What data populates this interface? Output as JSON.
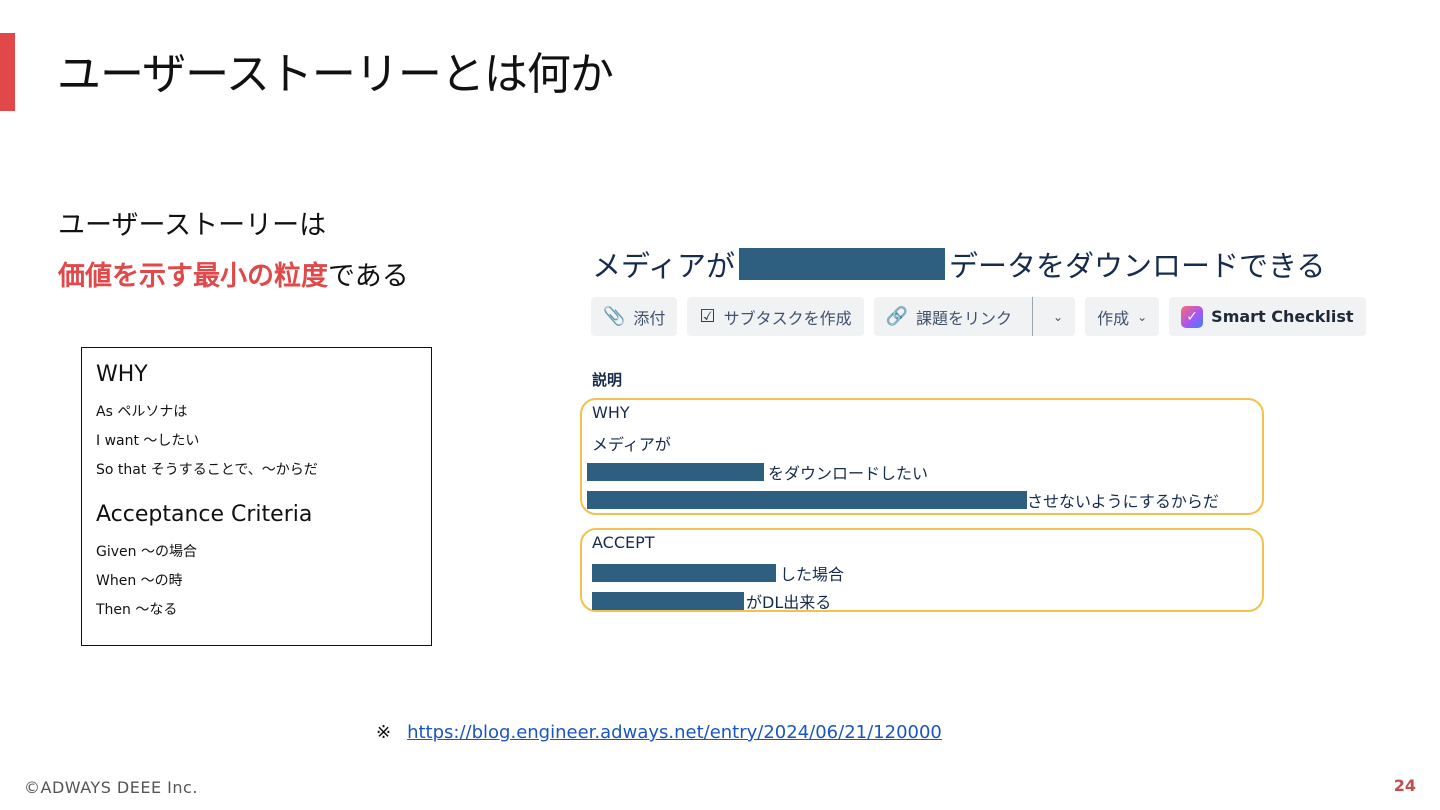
{
  "slide": {
    "title": "ユーザーストーリーとは何か",
    "lead_line1": "ユーザーストーリーは",
    "lead_line2_highlight": "価値を示す最小の粒度",
    "lead_line2_rest": "である"
  },
  "story_template": {
    "why_heading": "WHY",
    "why_lines": [
      "As ペルソナは",
      "I want 〜したい",
      "So that そうすることで、〜からだ"
    ],
    "acceptance_heading": "Acceptance Criteria",
    "acceptance_lines": [
      "Given 〜の場合",
      "When 〜の時",
      "Then 〜なる"
    ]
  },
  "jira": {
    "title_prefix": "メディアが",
    "title_suffix": "データをダウンロードできる",
    "toolbar": {
      "attach": "添付",
      "subtask": "サブタスクを作成",
      "link": "課題をリンク",
      "create": "作成",
      "smart_checklist": "Smart Checklist"
    },
    "description_label": "説明",
    "why_group": {
      "heading": "WHY",
      "line1": "メディアが",
      "line2_suffix": "をダウンロードしたい",
      "line3_suffix": "させないようにするからだ"
    },
    "accept_group": {
      "heading": "ACCEPT",
      "line1_suffix": "した場合",
      "line2_suffix": "がDL出来る"
    }
  },
  "source": {
    "mark": "※",
    "url": "https://blog.engineer.adways.net/entry/2024/06/21/120000"
  },
  "footer": {
    "copyright": "©ADWAYS DEEE Inc.",
    "page_number": "24"
  },
  "colors": {
    "accent": "#e0484a",
    "redaction": "#2f5f80",
    "group_border": "#f2c14e",
    "link": "#1a55c4"
  }
}
